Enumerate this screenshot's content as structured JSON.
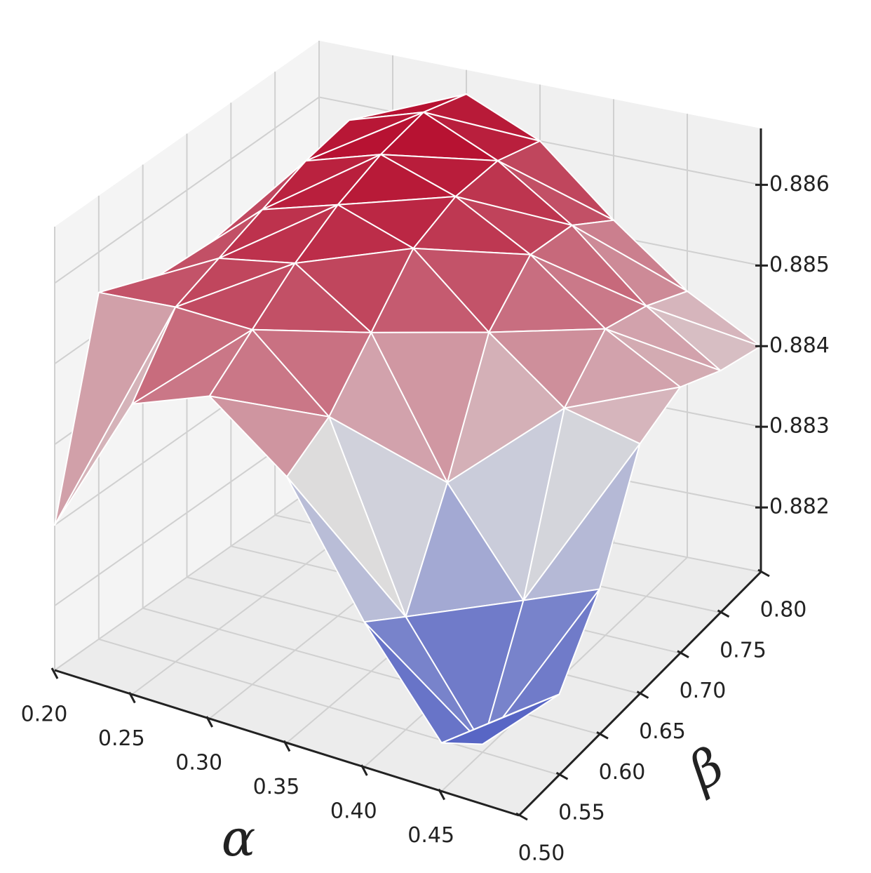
{
  "chart_data": {
    "type": "surface",
    "xlabel": "α",
    "ylabel": "β",
    "x": [
      0.2,
      0.25,
      0.3,
      0.35,
      0.4,
      0.45,
      0.5
    ],
    "y": [
      0.5,
      0.55,
      0.6,
      0.65,
      0.7,
      0.75,
      0.8
    ],
    "z": [
      [
        0.883,
        0.8848,
        0.8852,
        0.8845,
        0.883,
        0.8818,
        0.8825
      ],
      [
        0.8855,
        0.8856,
        0.8856,
        0.8848,
        0.8826,
        0.8813,
        0.8822
      ],
      [
        0.8852,
        0.8858,
        0.886,
        0.8854,
        0.8838,
        0.8826,
        0.883
      ],
      [
        0.8851,
        0.886,
        0.8863,
        0.886,
        0.8852,
        0.8845,
        0.8843
      ],
      [
        0.8851,
        0.8862,
        0.8865,
        0.8862,
        0.8857,
        0.885,
        0.8845
      ],
      [
        0.885,
        0.8863,
        0.8866,
        0.8862,
        0.8856,
        0.8848,
        0.8842
      ],
      [
        0.8848,
        0.886,
        0.8864,
        0.886,
        0.8852,
        0.8845,
        0.884
      ]
    ],
    "colormap": [
      "#3b4cc0",
      "#dddddd",
      "#b40426"
    ],
    "xlim": [
      0.2,
      0.5
    ],
    "ylim": [
      0.5,
      0.8
    ],
    "zlim": [
      0.8812,
      0.8867
    ],
    "xticks": [
      {
        "value": 0.2,
        "label": "0.20"
      },
      {
        "value": 0.25,
        "label": "0.25"
      },
      {
        "value": 0.3,
        "label": "0.30"
      },
      {
        "value": 0.35,
        "label": "0.35"
      },
      {
        "value": 0.4,
        "label": "0.40"
      },
      {
        "value": 0.45,
        "label": "0.45"
      }
    ],
    "yticks": [
      {
        "value": 0.5,
        "label": "0.50"
      },
      {
        "value": 0.55,
        "label": "0.55"
      },
      {
        "value": 0.6,
        "label": "0.60"
      },
      {
        "value": 0.65,
        "label": "0.65"
      },
      {
        "value": 0.7,
        "label": "0.70"
      },
      {
        "value": 0.75,
        "label": "0.75"
      },
      {
        "value": 0.8,
        "label": "0.80"
      }
    ],
    "zticks": [
      0.882,
      0.883,
      0.884,
      0.885,
      0.886
    ],
    "grid": true
  }
}
